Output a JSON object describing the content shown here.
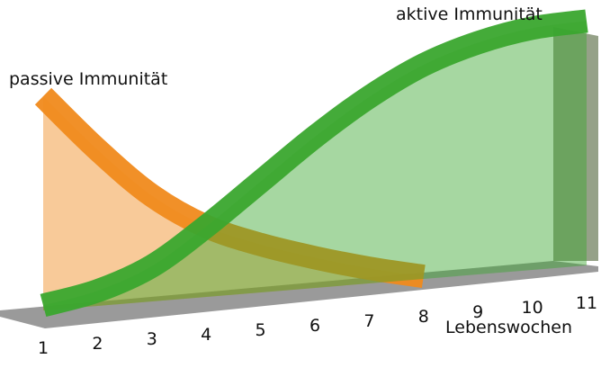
{
  "chart_data": {
    "type": "area",
    "x_label": "Lebenswochen",
    "categories": [
      "1",
      "2",
      "3",
      "4",
      "5",
      "6",
      "7",
      "8",
      "9",
      "10",
      "11"
    ],
    "ylim": [
      0,
      100
    ],
    "series": [
      {
        "name": "passive Immunität",
        "color": "#f08a1c",
        "values": [
          85,
          62,
          42,
          28,
          19,
          12,
          6,
          1,
          null,
          null,
          null
        ]
      },
      {
        "name": "aktive Immunität",
        "color": "#3aa62e",
        "values": [
          2,
          6,
          14,
          28,
          44,
          60,
          74,
          85,
          92,
          96,
          97
        ]
      }
    ]
  }
}
